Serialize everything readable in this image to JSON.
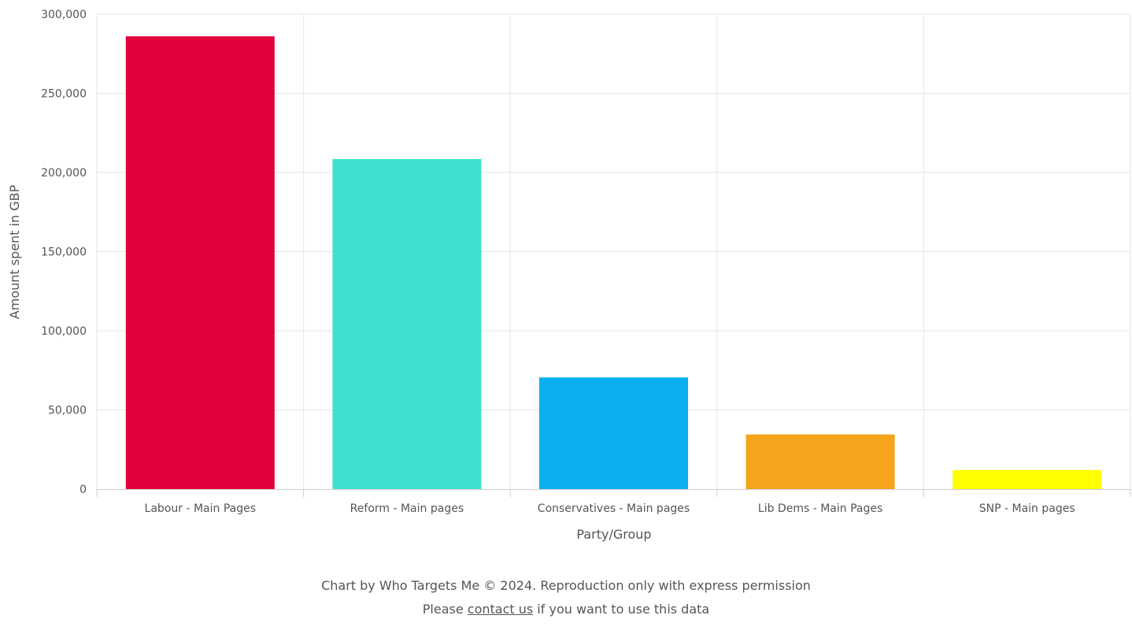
{
  "chart_data": {
    "type": "bar",
    "categories": [
      "Labour - Main Pages",
      "Reform - Main pages",
      "Conservatives - Main pages",
      "Lib Dems - Main Pages",
      "SNP - Main pages"
    ],
    "values": [
      286000,
      208500,
      70500,
      34500,
      12000
    ],
    "colors": [
      "#e4003b",
      "#40e0d0",
      "#0aafed",
      "#f6a31d",
      "#ffff00"
    ],
    "xlabel": "Party/Group",
    "ylabel": "Amount spent in GBP",
    "ylim": [
      0,
      300000
    ],
    "yticks": [
      0,
      50000,
      100000,
      150000,
      200000,
      250000,
      300000
    ],
    "ytick_labels": [
      "0",
      "50,000",
      "100,000",
      "150,000",
      "200,000",
      "250,000",
      "300,000"
    ],
    "grid": true
  },
  "credits": {
    "line1": "Chart by Who Targets Me © 2024. Reproduction only with express permission",
    "line2_prefix": "Please ",
    "line2_link": "contact us",
    "line2_suffix": " if you want to use this data"
  }
}
